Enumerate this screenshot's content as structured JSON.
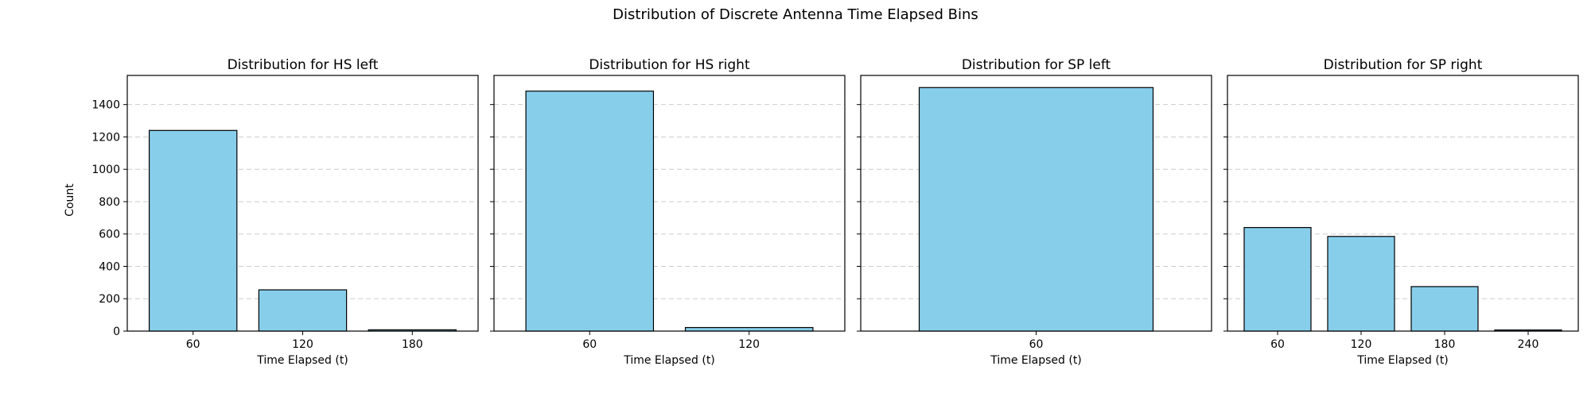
{
  "figure": {
    "title": "Distribution of Discrete Antenna Time Elapsed Bins",
    "ylabel": "Count"
  },
  "colors": {
    "bar_fill": "#87CEEB",
    "bar_edge": "#000000",
    "grid": "#cccccc"
  },
  "chart_data": [
    {
      "type": "bar",
      "title": "Distribution for HS left",
      "categories": [
        "60",
        "120",
        "180"
      ],
      "values": [
        1240,
        255,
        8
      ],
      "xlabel": "Time Elapsed (t)",
      "ylabel": "Count",
      "ylim": [
        0,
        1580
      ],
      "yticks": [
        0,
        200,
        400,
        600,
        800,
        1000,
        1200,
        1400
      ],
      "grid": "y-dashed",
      "show_ytick_labels": true
    },
    {
      "type": "bar",
      "title": "Distribution for HS right",
      "categories": [
        "60",
        "120"
      ],
      "values": [
        1483,
        22
      ],
      "xlabel": "Time Elapsed (t)",
      "ylabel": "",
      "ylim": [
        0,
        1580
      ],
      "yticks": [
        0,
        200,
        400,
        600,
        800,
        1000,
        1200,
        1400
      ],
      "grid": "y-dashed",
      "show_ytick_labels": false
    },
    {
      "type": "bar",
      "title": "Distribution for SP left",
      "categories": [
        "60"
      ],
      "values": [
        1505
      ],
      "xlabel": "Time Elapsed (t)",
      "ylabel": "",
      "ylim": [
        0,
        1580
      ],
      "yticks": [
        0,
        200,
        400,
        600,
        800,
        1000,
        1200,
        1400
      ],
      "grid": "y-dashed",
      "show_ytick_labels": false
    },
    {
      "type": "bar",
      "title": "Distribution for SP right",
      "categories": [
        "60",
        "120",
        "180",
        "240"
      ],
      "values": [
        640,
        585,
        275,
        7
      ],
      "xlabel": "Time Elapsed (t)",
      "ylabel": "",
      "ylim": [
        0,
        1580
      ],
      "yticks": [
        0,
        200,
        400,
        600,
        800,
        1000,
        1200,
        1400
      ],
      "grid": "y-dashed",
      "show_ytick_labels": false
    }
  ]
}
